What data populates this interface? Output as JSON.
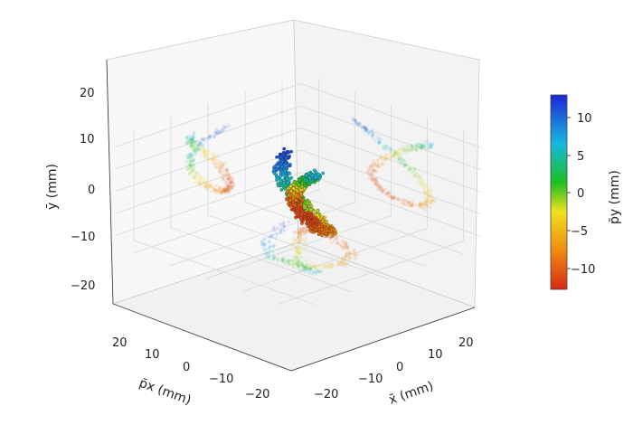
{
  "chart_data": {
    "type": "scatter",
    "title": "",
    "xlabel": "x̄ (mm)",
    "ylabel": "ȳ (mm)",
    "zlabel": "p̄x (mm)",
    "colorbar_label": "p̄y (mm)",
    "x_ticks": [
      "−20",
      "−10",
      "0",
      "10",
      "20"
    ],
    "y_ticks": [
      "−20",
      "−10",
      "0",
      "10",
      "20"
    ],
    "z_ticks": [
      "−20",
      "−10",
      "0",
      "10",
      "20"
    ],
    "colorbar_ticks": [
      "10",
      "5",
      "0",
      "−5",
      "−10"
    ],
    "xlim": [
      -25,
      25
    ],
    "ylim": [
      -25,
      25
    ],
    "zlim": [
      -25,
      25
    ],
    "colorbar_range": [
      -13,
      13
    ],
    "colormap": [
      "#d62a14",
      "#f08a10",
      "#f0e020",
      "#18c020",
      "#18b8e0",
      "#1c26d8"
    ],
    "grid": true,
    "projections": [
      "y–p̄x plane",
      "y–x̄ plane",
      "p̄x–x̄ plane"
    ],
    "series": [
      {
        "shape": "figure-eight trajectory, color = p̄y",
        "points": [
          {
            "x": -7,
            "y": 12,
            "px": -3,
            "py": 12
          },
          {
            "x": -4,
            "y": 9,
            "px": 1,
            "py": 10
          },
          {
            "x": 0,
            "y": 4,
            "px": 3,
            "py": 6
          },
          {
            "x": 4,
            "y": -1,
            "px": 3,
            "py": 1
          },
          {
            "x": 7,
            "y": -7,
            "px": 2,
            "py": -3
          },
          {
            "x": 8,
            "y": -12,
            "px": 0,
            "py": -6
          },
          {
            "x": 6,
            "y": -16,
            "px": -2,
            "py": -8
          },
          {
            "x": 2,
            "y": -17,
            "px": -3,
            "py": -10
          },
          {
            "x": -2,
            "y": -15,
            "px": -4,
            "py": -12
          },
          {
            "x": -4,
            "y": -10,
            "px": -3,
            "py": -11
          },
          {
            "x": -3,
            "y": -4,
            "px": -2,
            "py": -8
          },
          {
            "x": 0,
            "y": 2,
            "px": 0,
            "py": -4
          },
          {
            "x": 3,
            "y": 7,
            "px": 2,
            "py": 0
          },
          {
            "x": 6,
            "y": 11,
            "px": 3,
            "py": 4
          },
          {
            "x": 8,
            "y": 14,
            "px": 3,
            "py": 8
          }
        ]
      }
    ]
  }
}
